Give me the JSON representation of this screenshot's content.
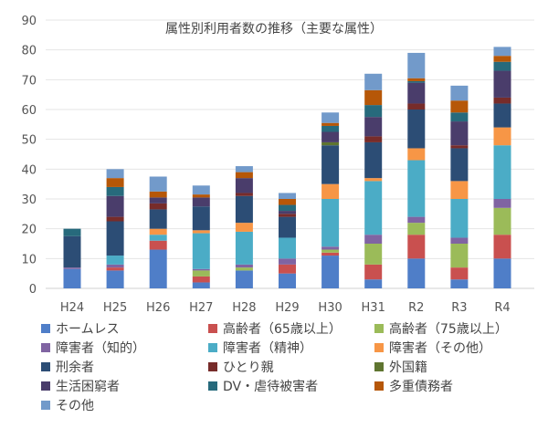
{
  "chart_data": {
    "type": "bar",
    "stacked": true,
    "title": "属性別利用者数の推移（主要な属性）",
    "xlabel": "",
    "ylabel": "",
    "ylim": [
      0,
      90
    ],
    "yticks": [
      0,
      10,
      20,
      30,
      40,
      50,
      60,
      70,
      80,
      90
    ],
    "grid": true,
    "legend_position": "bottom",
    "categories": [
      "H24",
      "H25",
      "H26",
      "H27",
      "H28",
      "H29",
      "H30",
      "H31",
      "R2",
      "R3",
      "R4"
    ],
    "series": [
      {
        "name": "ホームレス",
        "color": "#4f7ec8",
        "values": [
          6.5,
          6,
          13,
          2,
          6,
          5,
          11,
          3,
          10,
          3,
          10
        ]
      },
      {
        "name": "高齢者（65歳以上）",
        "color": "#c9504f",
        "values": [
          0,
          1,
          3,
          2,
          0,
          3,
          1,
          5,
          8,
          4,
          8
        ]
      },
      {
        "name": "高齢者（75歳以上）",
        "color": "#9bbb59",
        "values": [
          0,
          0,
          0,
          2,
          1,
          0,
          1,
          7,
          4,
          8,
          9
        ]
      },
      {
        "name": "障害者（知的）",
        "color": "#8064a2",
        "values": [
          0.5,
          1,
          0,
          0.5,
          1,
          2,
          1,
          3,
          2,
          2,
          3
        ]
      },
      {
        "name": "障害者（精神）",
        "color": "#4bacc6",
        "values": [
          0,
          3,
          2,
          12,
          11,
          7,
          16,
          18,
          19,
          13,
          18
        ]
      },
      {
        "name": "障害者（その他）",
        "color": "#f79646",
        "values": [
          0,
          0,
          2,
          1,
          3,
          0,
          5,
          1,
          4,
          6,
          6
        ]
      },
      {
        "name": "刑余者",
        "color": "#2c4d75",
        "values": [
          10.5,
          11.5,
          6.5,
          8,
          9,
          7,
          13,
          12,
          13,
          11,
          8
        ]
      },
      {
        "name": "ひとり親",
        "color": "#772c2a",
        "values": [
          0,
          1.5,
          2,
          0,
          1,
          1,
          0,
          2,
          2,
          1,
          2
        ]
      },
      {
        "name": "外国籍",
        "color": "#5f7530",
        "values": [
          0,
          0,
          0,
          0,
          0,
          0,
          1,
          0,
          0,
          0,
          0
        ]
      },
      {
        "name": "生活困窮者",
        "color": "#4a3d6b",
        "values": [
          0,
          7,
          2,
          3,
          5,
          1,
          3.5,
          6.5,
          7,
          8,
          9
        ]
      },
      {
        "name": "DV・虐待被害者",
        "color": "#276a7c",
        "values": [
          2.5,
          3,
          0,
          0,
          0,
          2,
          2,
          4,
          0.5,
          3,
          3
        ]
      },
      {
        "name": "多重債務者",
        "color": "#b65708",
        "values": [
          0,
          3,
          2,
          1,
          2,
          2,
          1,
          5,
          1,
          4,
          2
        ]
      },
      {
        "name": "その他",
        "color": "#729aca",
        "values": [
          0,
          3,
          5,
          3,
          2,
          2,
          3.5,
          5.5,
          8.5,
          5,
          3
        ]
      }
    ]
  }
}
